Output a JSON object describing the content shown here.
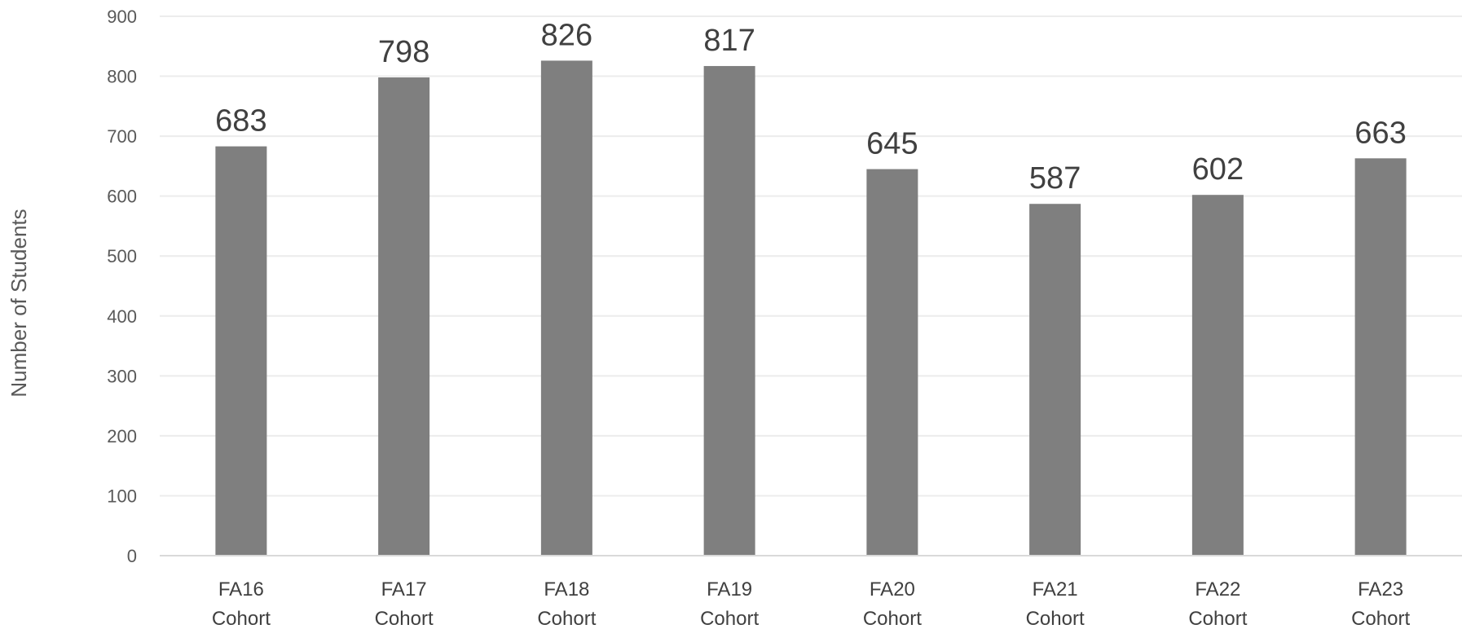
{
  "chart_data": {
    "type": "bar",
    "title": "",
    "xlabel": "",
    "ylabel": "Number of Students",
    "categories": [
      [
        "FA16",
        "Cohort"
      ],
      [
        "FA17",
        "Cohort"
      ],
      [
        "FA18",
        "Cohort"
      ],
      [
        "FA19",
        "Cohort"
      ],
      [
        "FA20",
        "Cohort"
      ],
      [
        "FA21",
        "Cohort"
      ],
      [
        "FA22",
        "Cohort"
      ],
      [
        "FA23",
        "Cohort"
      ]
    ],
    "values": [
      683,
      798,
      826,
      817,
      645,
      587,
      602,
      663
    ],
    "data_labels": [
      "683",
      "798",
      "826",
      "817",
      "645",
      "587",
      "602",
      "663"
    ],
    "ylim": [
      0,
      900
    ],
    "yticks": [
      0,
      100,
      200,
      300,
      400,
      500,
      600,
      700,
      800,
      900
    ],
    "grid": true,
    "legend": "none",
    "colors": {
      "bar": "#7f7f7f",
      "grid": "#ececec",
      "axis": "#d9d9d9"
    }
  }
}
